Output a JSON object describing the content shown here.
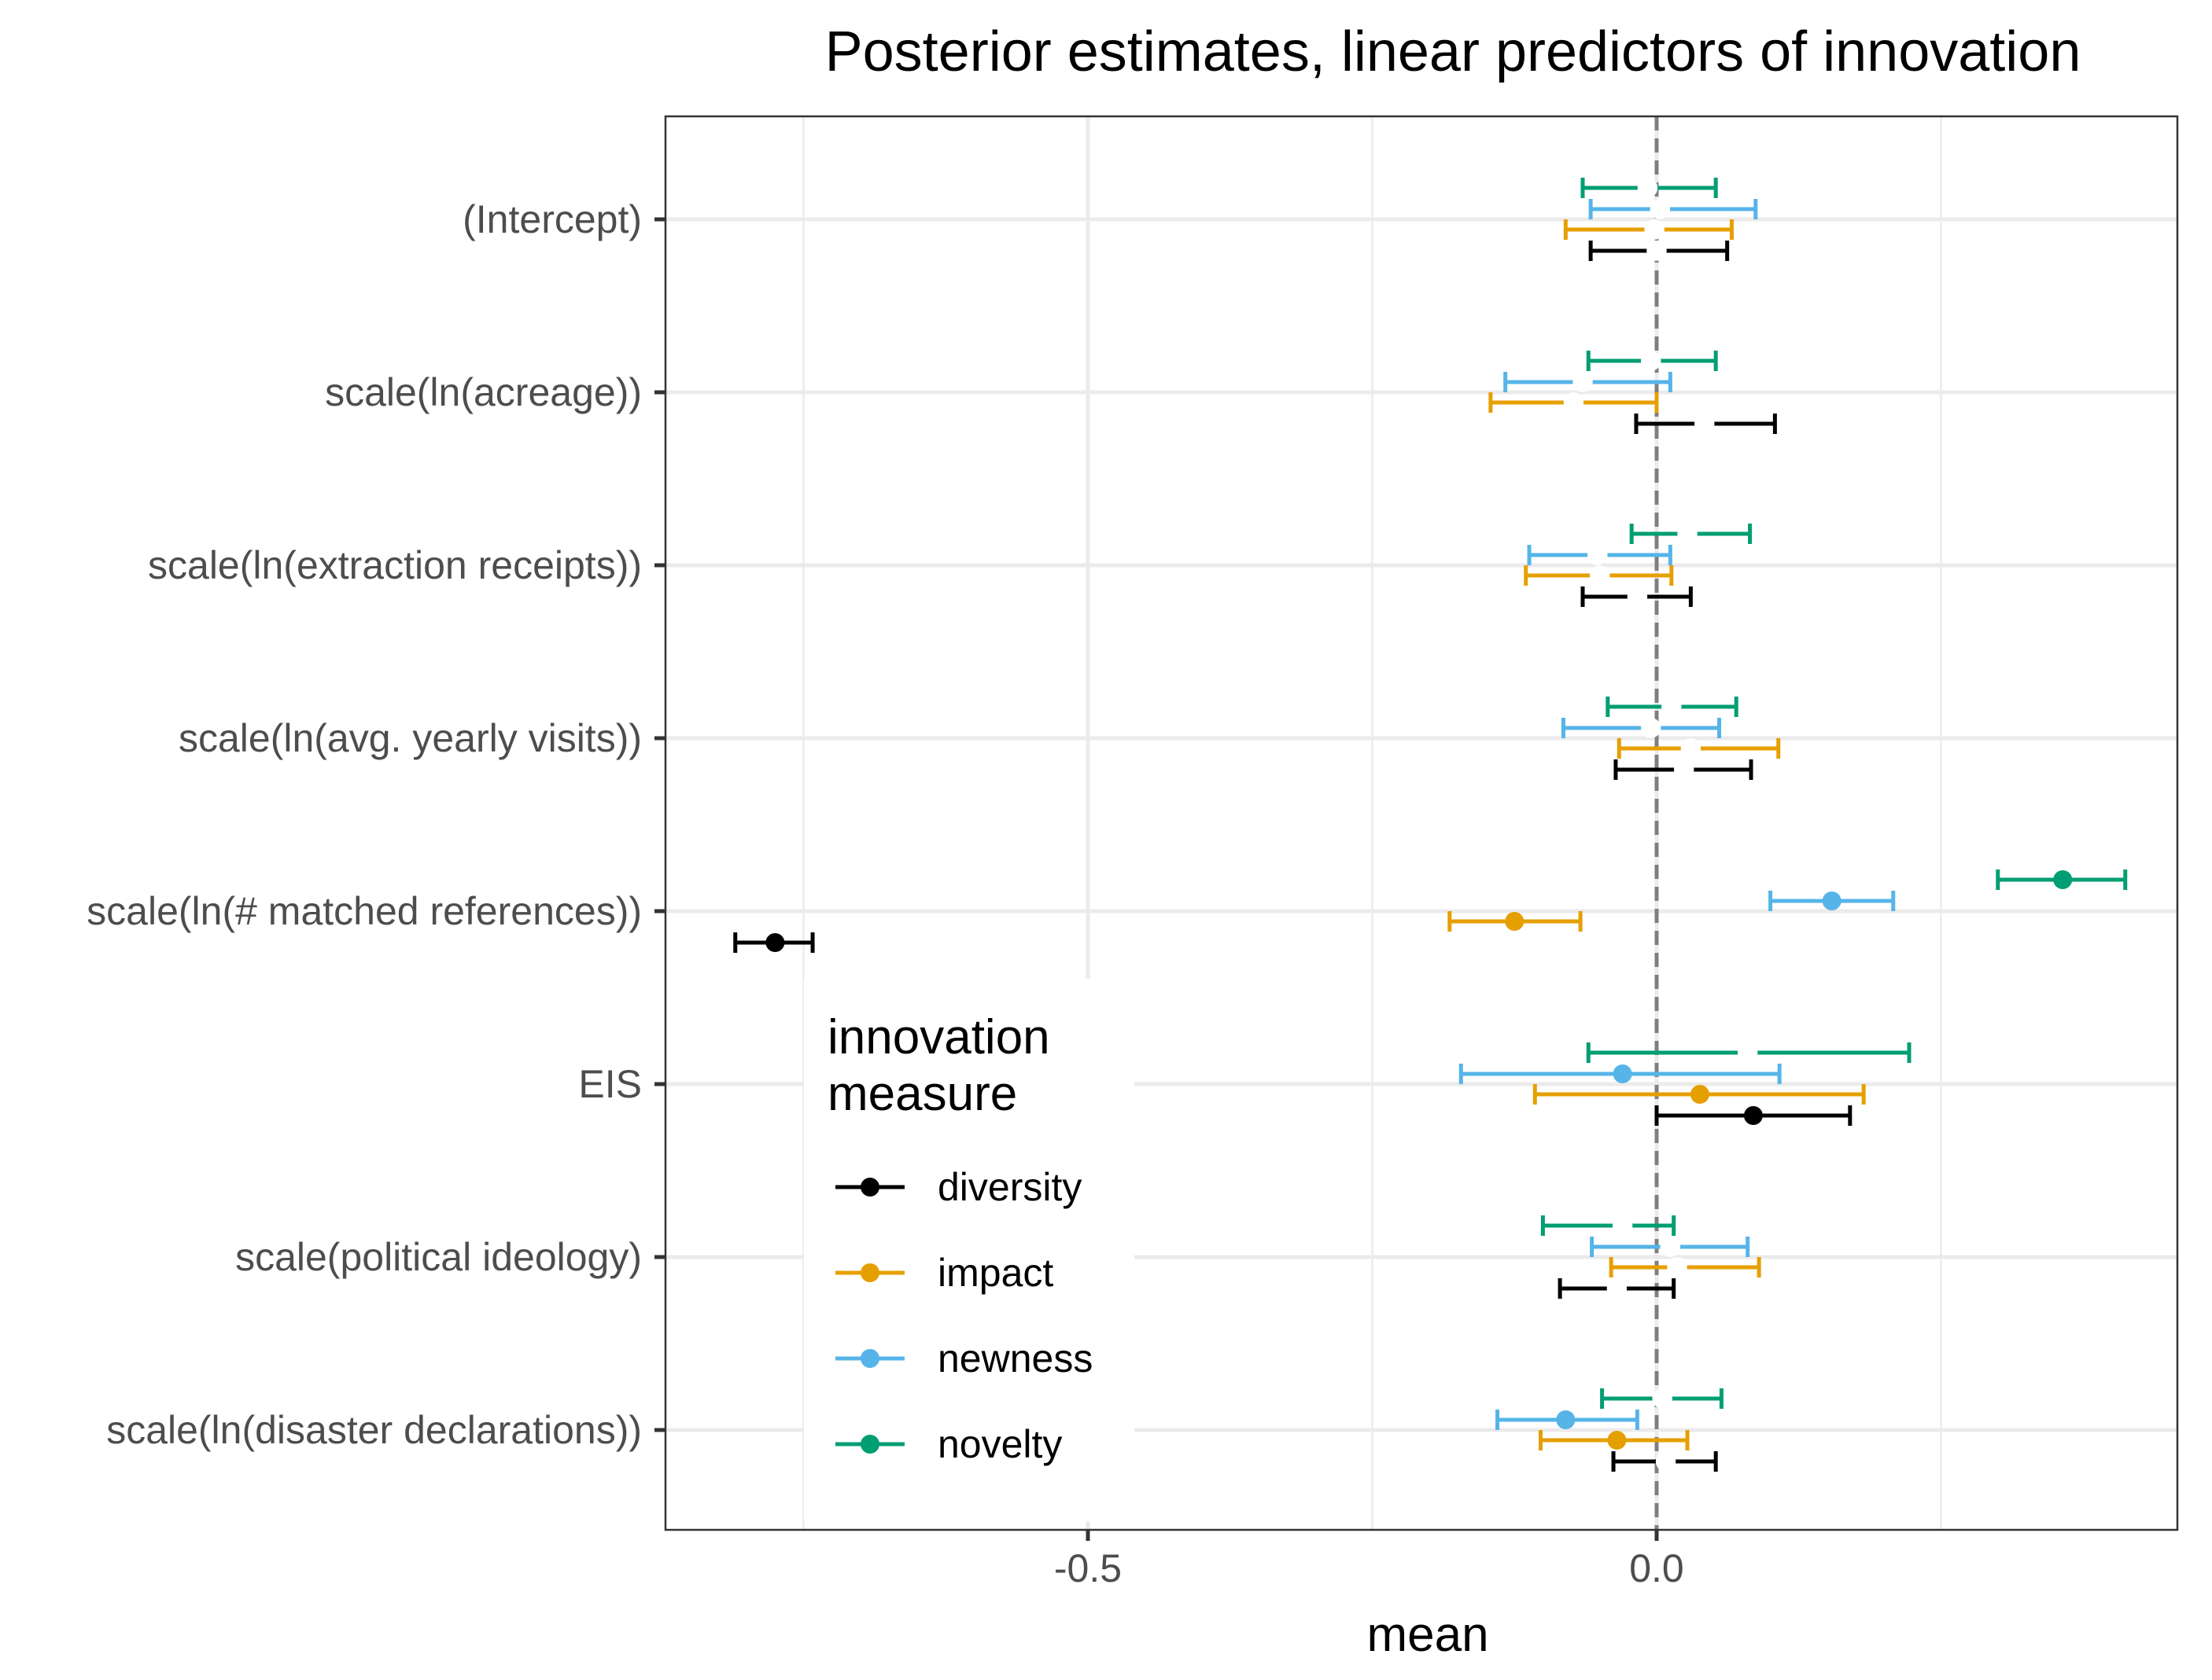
{
  "chart_data": {
    "type": "scatter",
    "title": "Posterior estimates, linear predictors of innovation",
    "xlabel": "mean",
    "ylabel": "",
    "xlim": [
      -0.87,
      0.46
    ],
    "x_ticks": [
      -0.5,
      0.0
    ],
    "x_tick_labels": [
      "-0.5",
      "0.0"
    ],
    "reference_line": {
      "x": 0,
      "style": "dashed",
      "color": "#7f7f7f"
    },
    "grid": true,
    "categories": [
      "(Intercept)",
      "scale(ln(acreage))",
      "scale(ln(extraction receipts))",
      "scale(ln(avg. yearly visits))",
      "scale(ln(# matched references))",
      "EIS",
      "scale(political ideology)",
      "scale(ln(disaster declarations))"
    ],
    "legend": {
      "title_lines": [
        "innovation",
        "measure"
      ],
      "placement": "inside-bottom-left"
    },
    "series": [
      {
        "name": "diversity",
        "color": "#000000",
        "mean": [
          0.0,
          0.042,
          -0.017,
          0.024,
          -0.775,
          0.085,
          -0.035,
          0.008
        ],
        "lower": [
          -0.058,
          -0.018,
          -0.065,
          -0.036,
          -0.81,
          0.0,
          -0.085,
          -0.038
        ],
        "upper": [
          0.062,
          0.104,
          0.03,
          0.083,
          -0.742,
          0.17,
          0.015,
          0.052
        ],
        "credible": [
          false,
          false,
          false,
          false,
          true,
          true,
          false,
          false
        ]
      },
      {
        "name": "impact",
        "color": "#E69F00",
        "mean": [
          -0.002,
          -0.073,
          -0.05,
          0.03,
          -0.125,
          0.038,
          0.018,
          -0.035
        ],
        "lower": [
          -0.08,
          -0.146,
          -0.115,
          -0.033,
          -0.182,
          -0.107,
          -0.04,
          -0.102
        ],
        "upper": [
          0.066,
          0.0,
          0.013,
          0.107,
          -0.067,
          0.182,
          0.09,
          0.027
        ],
        "credible": [
          false,
          false,
          false,
          false,
          true,
          true,
          false,
          true
        ]
      },
      {
        "name": "newness",
        "color": "#56B4E9",
        "mean": [
          0.003,
          -0.065,
          -0.052,
          -0.005,
          0.154,
          -0.03,
          0.012,
          -0.08
        ],
        "lower": [
          -0.058,
          -0.133,
          -0.112,
          -0.082,
          0.1,
          -0.172,
          -0.057,
          -0.14
        ],
        "upper": [
          0.087,
          0.012,
          0.012,
          0.055,
          0.208,
          0.108,
          0.08,
          -0.017
        ],
        "credible": [
          false,
          false,
          false,
          false,
          true,
          true,
          false,
          true
        ]
      },
      {
        "name": "novelty",
        "color": "#009E73",
        "mean": [
          -0.008,
          -0.005,
          0.027,
          0.013,
          0.357,
          0.08,
          -0.03,
          0.005
        ],
        "lower": [
          -0.065,
          -0.06,
          -0.022,
          -0.043,
          0.3,
          -0.06,
          -0.1,
          -0.048
        ],
        "upper": [
          0.052,
          0.052,
          0.082,
          0.07,
          0.412,
          0.222,
          0.015,
          0.057
        ],
        "credible": [
          false,
          false,
          false,
          false,
          true,
          false,
          false,
          false
        ]
      }
    ]
  }
}
